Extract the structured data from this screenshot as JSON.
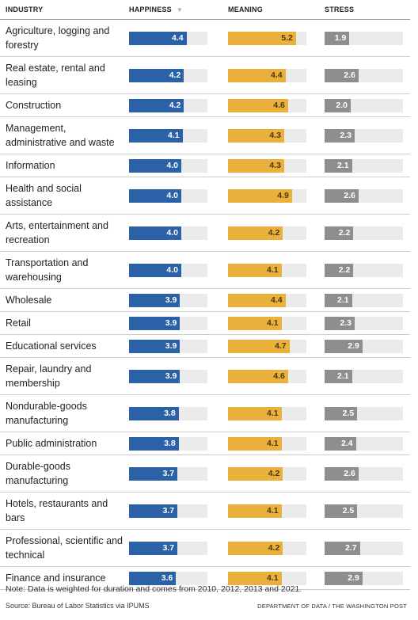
{
  "chart_data": {
    "type": "bar-table",
    "category_label": "INDUSTRY",
    "categories": [
      "Agriculture, logging and forestry",
      "Real estate, rental and leasing",
      "Construction",
      "Management, administrative and waste",
      "Information",
      "Health and social assistance",
      "Arts, entertainment and recreation",
      "Transportation and warehousing",
      "Wholesale",
      "Retail",
      "Educational services",
      "Repair, laundry and membership",
      "Nondurable-goods manufacturing",
      "Public administration",
      "Durable-goods manufacturing",
      "Hotels, restaurants and bars",
      "Professional, scientific and technical",
      "Finance and insurance"
    ],
    "xlim": [
      0,
      6
    ],
    "series": [
      {
        "name": "HAPPINESS",
        "color": "#2b62a7",
        "label_color": "#ffffff",
        "values": [
          4.4,
          4.2,
          4.2,
          4.1,
          4.0,
          4.0,
          4.0,
          4.0,
          3.9,
          3.9,
          3.9,
          3.9,
          3.8,
          3.8,
          3.7,
          3.7,
          3.7,
          3.6
        ],
        "value_labels": [
          "4.4",
          "4.2",
          "4.2",
          "4.1",
          "4.0",
          "4.0",
          "4.0",
          "4.0",
          "3.9",
          "3.9",
          "3.9",
          "3.9",
          "3.8",
          "3.8",
          "3.7",
          "3.7",
          "3.7",
          "3.6"
        ]
      },
      {
        "name": "MEANING",
        "color": "#e9b03c",
        "label_color": "#4a3a10",
        "values": [
          5.2,
          4.4,
          4.6,
          4.3,
          4.3,
          4.9,
          4.2,
          4.1,
          4.4,
          4.1,
          4.7,
          4.6,
          4.1,
          4.1,
          4.2,
          4.1,
          4.2,
          4.1
        ],
        "value_labels": [
          "5.2",
          "4.4",
          "4.6",
          "4.3",
          "4.3",
          "4.9",
          "4.2",
          "4.1",
          "4.4",
          "4.1",
          "4.7",
          "4.6",
          "4.1",
          "4.1",
          "4.2",
          "4.1",
          "4.2",
          "4.1"
        ]
      },
      {
        "name": "STRESS",
        "color": "#8e8e8e",
        "label_color": "#ffffff",
        "values": [
          1.9,
          2.6,
          2.0,
          2.3,
          2.1,
          2.6,
          2.2,
          2.2,
          2.1,
          2.3,
          2.9,
          2.1,
          2.5,
          2.4,
          2.6,
          2.5,
          2.7,
          2.9
        ],
        "value_labels": [
          "1.9",
          "2.6",
          "2.0",
          "2.3",
          "2.1",
          "2.6",
          "2.2",
          "2.2",
          "2.1",
          "2.3",
          "2.9",
          "2.1",
          "2.5",
          "2.4",
          "2.6",
          "2.5",
          "2.7",
          "2.9"
        ]
      }
    ],
    "note": "Note: Data is weighted for duration and comes from 2010, 2012, 2013 and 2021.",
    "source": "Source: Bureau of Labor Statistics via IPUMS",
    "credit": "DEPARTMENT OF DATA / THE WASHINGTON POST"
  }
}
